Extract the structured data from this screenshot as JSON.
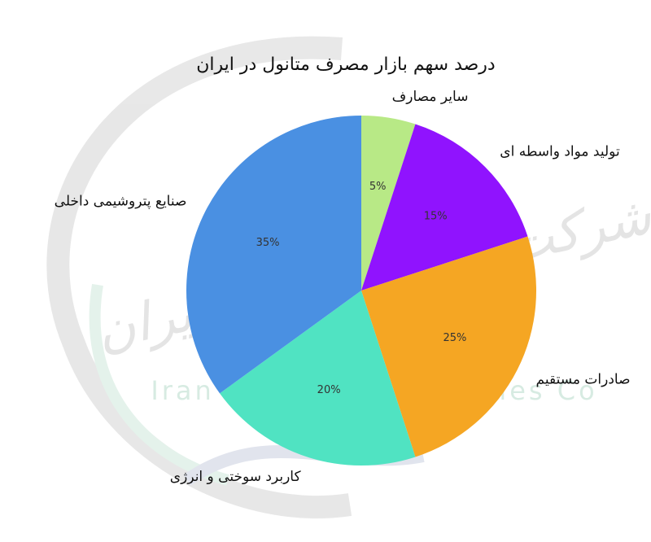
{
  "chart_data": {
    "type": "pie",
    "title": "درصد سهم بازار مصرف متانول در ایران",
    "categories": [
      "سایر مصارف",
      "تولید مواد واسطه ای",
      "صادرات مستقیم",
      "کاربرد سوختی و انرژی",
      "صنایع پتروشیمی داخلی"
    ],
    "values": [
      5,
      15,
      25,
      20,
      35
    ],
    "value_labels": [
      "5%",
      "15%",
      "25%",
      "20%",
      "35%"
    ],
    "colors": [
      "#b8e986",
      "#9013fe",
      "#f5a623",
      "#50e3c2",
      "#4a90e2"
    ],
    "watermark_fa": "شرکت صنایع متانول ایران",
    "watermark_en": "Iran Methanol Industries Co"
  }
}
